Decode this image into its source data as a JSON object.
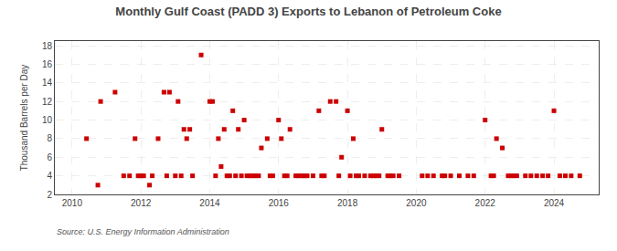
{
  "chart_data": {
    "type": "scatter",
    "title": "Monthly Gulf Coast (PADD 3) Exports to Lebanon of Petroleum Coke",
    "ylabel": "Thousand Barrels per Day",
    "source": "Source: U.S. Energy Information Administration",
    "color": "#cc0000",
    "marker": "square",
    "grid": true,
    "xlim": [
      2009.5,
      2025.3
    ],
    "ylim": [
      2,
      18.5
    ],
    "xticks": [
      2010,
      2012,
      2014,
      2016,
      2018,
      2020,
      2022,
      2024
    ],
    "yticks": [
      2,
      4,
      6,
      8,
      10,
      12,
      14,
      16,
      18
    ],
    "x": [
      2010.42,
      2010.75,
      2010.83,
      2011.25,
      2011.5,
      2011.67,
      2011.83,
      2011.92,
      2012.0,
      2012.08,
      2012.25,
      2012.33,
      2012.5,
      2012.67,
      2012.75,
      2012.83,
      2013.0,
      2013.08,
      2013.17,
      2013.25,
      2013.33,
      2013.42,
      2013.5,
      2013.75,
      2014.0,
      2014.08,
      2014.17,
      2014.25,
      2014.33,
      2014.42,
      2014.5,
      2014.58,
      2014.67,
      2014.75,
      2014.83,
      2014.92,
      2015.0,
      2015.08,
      2015.17,
      2015.25,
      2015.33,
      2015.42,
      2015.5,
      2015.67,
      2015.75,
      2015.83,
      2016.0,
      2016.08,
      2016.17,
      2016.25,
      2016.33,
      2016.5,
      2016.58,
      2016.67,
      2016.75,
      2016.83,
      2017.0,
      2017.17,
      2017.25,
      2017.33,
      2017.5,
      2017.67,
      2017.75,
      2017.83,
      2018.0,
      2018.08,
      2018.17,
      2018.25,
      2018.33,
      2018.5,
      2018.67,
      2018.75,
      2018.83,
      2018.92,
      2019.0,
      2019.17,
      2019.25,
      2019.33,
      2019.5,
      2020.17,
      2020.33,
      2020.5,
      2020.75,
      2020.83,
      2021.0,
      2021.25,
      2021.5,
      2021.67,
      2022.0,
      2022.17,
      2022.25,
      2022.33,
      2022.5,
      2022.67,
      2022.75,
      2022.83,
      2022.92,
      2023.17,
      2023.33,
      2023.5,
      2023.67,
      2023.83,
      2024.0,
      2024.17,
      2024.33,
      2024.5,
      2024.75
    ],
    "values": [
      8,
      3,
      12,
      13,
      4,
      4,
      8,
      4,
      4,
      4,
      3,
      4,
      8,
      13,
      4,
      13,
      4,
      12,
      4,
      9,
      8,
      9,
      4,
      17,
      12,
      12,
      4,
      8,
      5,
      9,
      4,
      4,
      11,
      4,
      9,
      4,
      10,
      4,
      4,
      4,
      4,
      4,
      7,
      8,
      4,
      4,
      10,
      8,
      4,
      4,
      9,
      4,
      4,
      4,
      4,
      4,
      4,
      11,
      4,
      4,
      12,
      12,
      4,
      6,
      11,
      4,
      8,
      4,
      4,
      4,
      4,
      4,
      4,
      4,
      9,
      4,
      4,
      4,
      4,
      4,
      4,
      4,
      4,
      4,
      4,
      4,
      4,
      4,
      10,
      4,
      4,
      8,
      7,
      4,
      4,
      4,
      4,
      4,
      4,
      4,
      4,
      4,
      11,
      4,
      4,
      4,
      4
    ]
  }
}
